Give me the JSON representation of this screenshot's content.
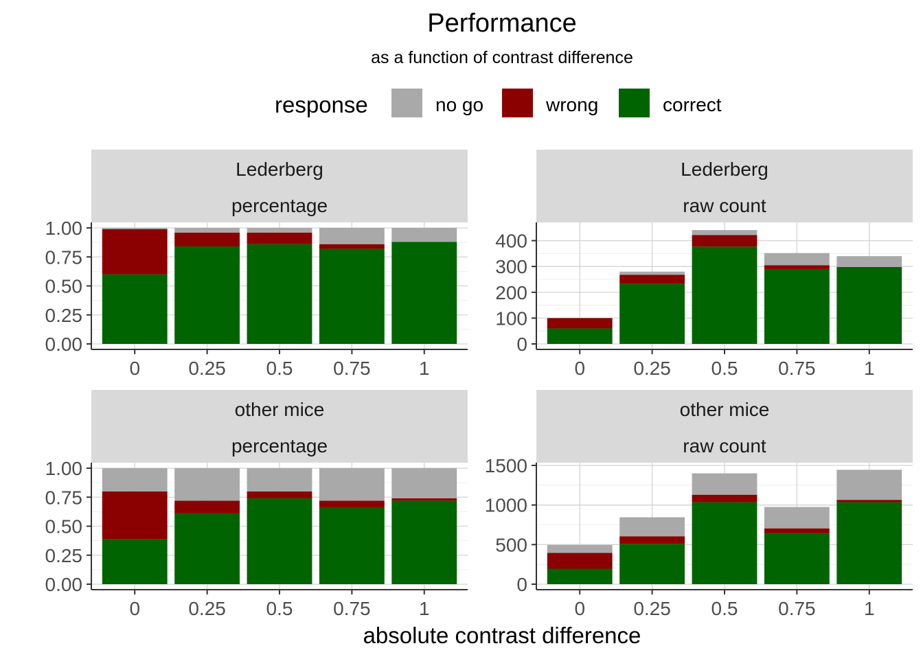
{
  "chart_data": {
    "type": "bar",
    "stacked": true,
    "title": "Performance",
    "subtitle": "as a function of contrast difference",
    "xlabel": "absolute contrast difference",
    "legend": {
      "title": "response",
      "position": "top",
      "items": [
        {
          "label": "no go",
          "color": "#a9a9a9"
        },
        {
          "label": "wrong",
          "color": "#8b0000"
        },
        {
          "label": "correct",
          "color": "#006400"
        }
      ]
    },
    "stack_order": [
      "correct",
      "wrong",
      "no go"
    ],
    "grid": true,
    "facets": [
      {
        "strip": [
          "Lederberg",
          "percentage"
        ],
        "categories": [
          "0",
          "0.25",
          "0.5",
          "0.75",
          "1"
        ],
        "ylim": [
          0,
          1
        ],
        "yticks": [
          "0.00",
          "0.25",
          "0.50",
          "0.75",
          "1.00"
        ],
        "ytick_values": [
          0,
          0.25,
          0.5,
          0.75,
          1
        ],
        "series": [
          {
            "name": "correct",
            "values": [
              0.6,
              0.84,
              0.86,
              0.82,
              0.88
            ]
          },
          {
            "name": "wrong",
            "values": [
              0.39,
              0.12,
              0.1,
              0.04,
              0.0
            ]
          },
          {
            "name": "no go",
            "values": [
              0.01,
              0.04,
              0.04,
              0.14,
              0.12
            ]
          }
        ]
      },
      {
        "strip": [
          "Lederberg",
          "raw count"
        ],
        "categories": [
          "0",
          "0.25",
          "0.5",
          "0.75",
          "1"
        ],
        "ylim": [
          0,
          460
        ],
        "yticks": [
          "0",
          "100",
          "200",
          "300",
          "400"
        ],
        "ytick_values": [
          0,
          100,
          200,
          300,
          400
        ],
        "series": [
          {
            "name": "correct",
            "values": [
              60,
              233,
              377,
              290,
              298
            ]
          },
          {
            "name": "wrong",
            "values": [
              40,
              35,
              45,
              15,
              0
            ]
          },
          {
            "name": "no go",
            "values": [
              1,
              12,
              19,
              47,
              42
            ]
          }
        ]
      },
      {
        "strip": [
          "other mice",
          "percentage"
        ],
        "categories": [
          "0",
          "0.25",
          "0.5",
          "0.75",
          "1"
        ],
        "ylim": [
          0,
          1
        ],
        "yticks": [
          "0.00",
          "0.25",
          "0.50",
          "0.75",
          "1.00"
        ],
        "ytick_values": [
          0,
          0.25,
          0.5,
          0.75,
          1
        ],
        "series": [
          {
            "name": "correct",
            "values": [
              0.39,
              0.61,
              0.74,
              0.66,
              0.72
            ]
          },
          {
            "name": "wrong",
            "values": [
              0.41,
              0.11,
              0.06,
              0.06,
              0.02
            ]
          },
          {
            "name": "no go",
            "values": [
              0.2,
              0.28,
              0.2,
              0.28,
              0.26
            ]
          }
        ]
      },
      {
        "strip": [
          "other mice",
          "raw count"
        ],
        "categories": [
          "0",
          "0.25",
          "0.5",
          "0.75",
          "1"
        ],
        "ylim": [
          0,
          1500
        ],
        "yticks": [
          "0",
          "500",
          "1000",
          "1500"
        ],
        "ytick_values": [
          0,
          500,
          1000,
          1500
        ],
        "series": [
          {
            "name": "correct",
            "values": [
              195,
              510,
              1035,
              645,
              1035
            ]
          },
          {
            "name": "wrong",
            "values": [
              200,
              95,
              95,
              60,
              30
            ]
          },
          {
            "name": "no go",
            "values": [
              100,
              240,
              270,
              270,
              380
            ]
          }
        ]
      }
    ]
  }
}
